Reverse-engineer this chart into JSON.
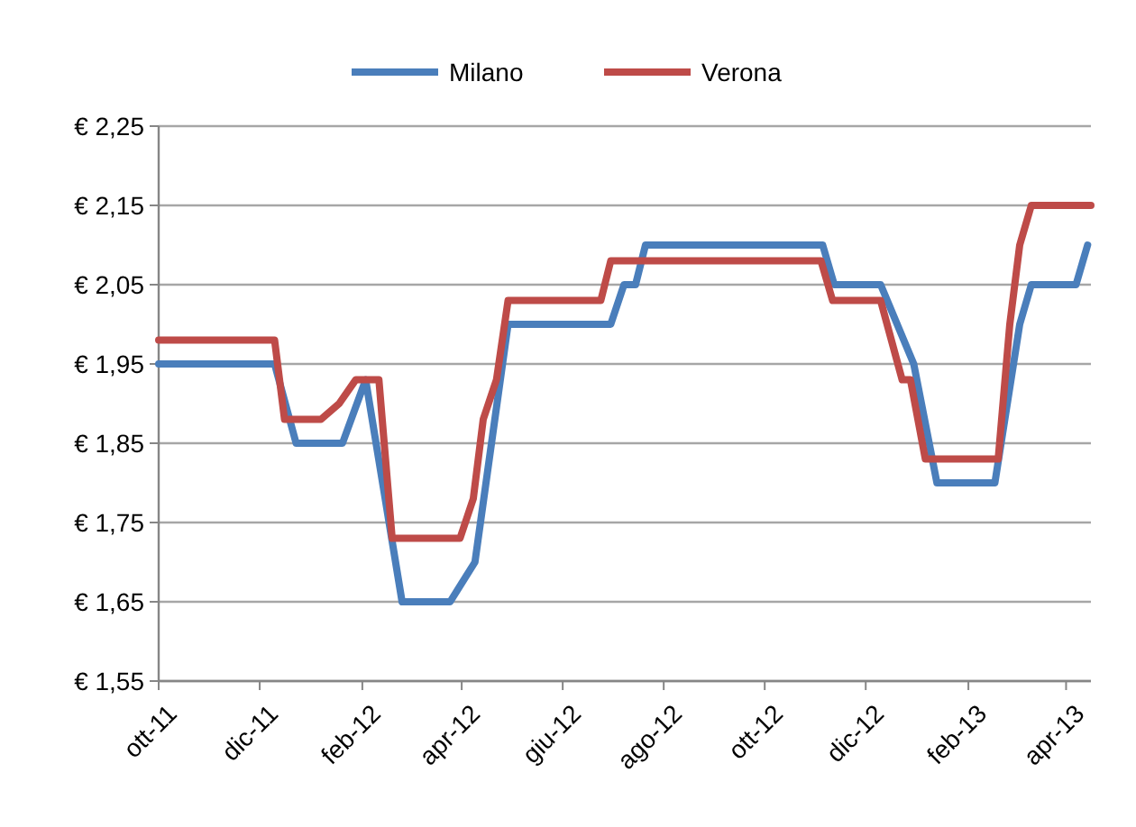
{
  "chart_data": {
    "type": "line",
    "legend": "top",
    "grid": "y",
    "marker": "none",
    "line_style": "solid",
    "xlim": [
      "2011-10-01",
      "2013-04-16"
    ],
    "xticks": [
      {
        "value": "2011-10-01",
        "label": "ott-11"
      },
      {
        "value": "2011-12-01",
        "label": "dic-11"
      },
      {
        "value": "2012-02-01",
        "label": "feb-12"
      },
      {
        "value": "2012-04-01",
        "label": "apr-12"
      },
      {
        "value": "2012-06-01",
        "label": "giu-12"
      },
      {
        "value": "2012-08-01",
        "label": "ago-12"
      },
      {
        "value": "2012-10-01",
        "label": "ott-12"
      },
      {
        "value": "2012-12-01",
        "label": "dic-12"
      },
      {
        "value": "2013-02-01",
        "label": "feb-13"
      },
      {
        "value": "2013-04-01",
        "label": "apr-13"
      }
    ],
    "ylim": [
      1.55,
      2.25
    ],
    "yticks": [
      {
        "value": 1.55,
        "label": "€ 1,55"
      },
      {
        "value": 1.65,
        "label": "€ 1,65"
      },
      {
        "value": 1.75,
        "label": "€ 1,75"
      },
      {
        "value": 1.85,
        "label": "€ 1,85"
      },
      {
        "value": 1.95,
        "label": "€ 1,95"
      },
      {
        "value": 2.05,
        "label": "€ 2,05"
      },
      {
        "value": 2.15,
        "label": "€ 2,15"
      },
      {
        "value": 2.25,
        "label": "€ 2,25"
      }
    ],
    "series": [
      {
        "name": "Milano",
        "color": "#4a7ebb",
        "x": [
          "2011-10-01",
          "2011-12-10",
          "2011-12-23",
          "2012-01-20",
          "2012-02-03",
          "2012-02-25",
          "2012-03-25",
          "2012-04-09",
          "2012-04-29",
          "2012-06-30",
          "2012-07-08",
          "2012-07-15",
          "2012-07-21",
          "2012-11-05",
          "2012-11-12",
          "2012-12-10",
          "2012-12-30",
          "2013-01-13",
          "2013-02-17",
          "2013-03-04",
          "2013-03-11",
          "2013-04-07",
          "2013-04-14"
        ],
        "values": [
          1.95,
          1.95,
          1.85,
          1.85,
          1.93,
          1.65,
          1.65,
          1.7,
          2.0,
          2.0,
          2.05,
          2.05,
          2.1,
          2.1,
          2.05,
          2.05,
          1.95,
          1.8,
          1.8,
          2.0,
          2.05,
          2.05,
          2.1
        ]
      },
      {
        "name": "Verona",
        "color": "#be4b48",
        "x": [
          "2011-10-01",
          "2011-12-10",
          "2011-12-16",
          "2012-01-07",
          "2012-01-18",
          "2012-01-28",
          "2012-02-11",
          "2012-02-19",
          "2012-03-31",
          "2012-04-08",
          "2012-04-14",
          "2012-04-22",
          "2012-04-29",
          "2012-06-24",
          "2012-06-30",
          "2012-11-04",
          "2012-11-11",
          "2012-12-10",
          "2012-12-23",
          "2012-12-28",
          "2013-01-06",
          "2013-02-19",
          "2013-02-26",
          "2013-03-04",
          "2013-03-11",
          "2013-04-16"
        ],
        "values": [
          1.98,
          1.98,
          1.88,
          1.88,
          1.9,
          1.93,
          1.93,
          1.73,
          1.73,
          1.78,
          1.88,
          1.93,
          2.03,
          2.03,
          2.08,
          2.08,
          2.03,
          2.03,
          1.93,
          1.93,
          1.83,
          1.83,
          2.0,
          2.1,
          2.15,
          2.15
        ]
      }
    ]
  }
}
